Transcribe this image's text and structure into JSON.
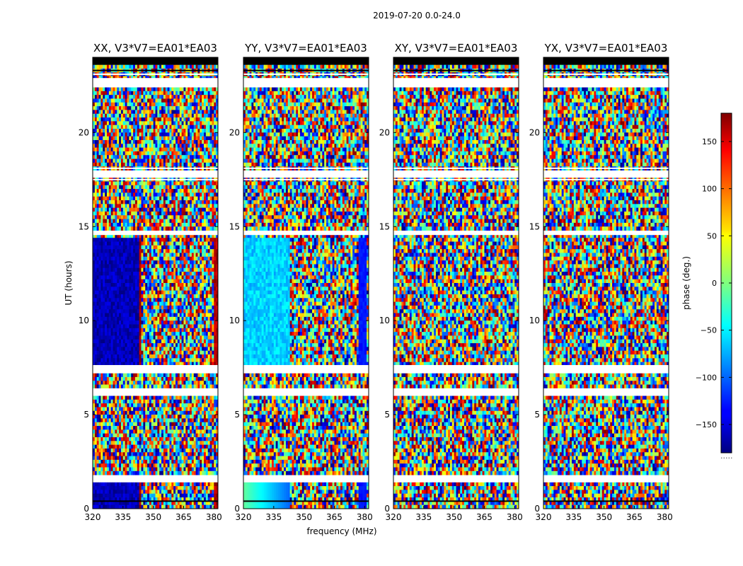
{
  "chart_data": {
    "type": "heatmap",
    "suptitle": "2019-07-20 0.0-24.0",
    "xlabel": "frequency (MHz)",
    "ylabel": "UT (hours)",
    "xlim": [
      320,
      382
    ],
    "ylim": [
      0,
      24
    ],
    "xticks": [
      320,
      335,
      350,
      365,
      380
    ],
    "yticks": [
      0,
      5,
      10,
      15,
      20
    ],
    "colorbar": {
      "label": "phase (deg.)",
      "range": [
        -180,
        180
      ],
      "ticks": [
        150,
        100,
        50,
        0,
        -50,
        -100,
        -150
      ],
      "tick_labels": [
        "150",
        "100",
        "50",
        "0",
        "−50",
        "−100",
        "−150"
      ],
      "colormap": "jet",
      "extra_label": "....."
    },
    "panels": [
      {
        "title": "XX, V3*V7=EA01*EA03",
        "pol": "XX",
        "band_phase": [
          {
            "f0": 320,
            "f1": 343,
            "phase": -160
          },
          {
            "f0": 343,
            "f1": 344.5,
            "phase": 170
          },
          {
            "f0": 344.5,
            "f1": 343.8,
            "phase": 0
          }
        ]
      },
      {
        "title": "YY, V3*V7=EA01*EA03",
        "pol": "YY",
        "band_phase": [
          {
            "f0": 320,
            "f1": 343,
            "phase": -60
          }
        ]
      },
      {
        "title": "XY, V3*V7=EA01*EA03",
        "pol": "XY",
        "band_phase": []
      },
      {
        "title": "YX, V3*V7=EA01*EA03",
        "pol": "YX",
        "band_phase": []
      }
    ],
    "flagged_ut_hours": [
      0.4,
      1.55,
      1.7,
      6.2,
      6.3,
      7.3,
      7.45,
      7.6,
      14.6,
      14.7,
      17.5,
      17.7,
      17.9,
      18.1,
      23.1,
      23.3
    ],
    "masked_ut_ranges": [
      [
        22.5,
        22.9
      ],
      [
        14.55,
        14.75
      ],
      [
        7.2,
        7.55
      ],
      [
        6.1,
        6.4
      ],
      [
        1.45,
        1.75
      ],
      [
        17.6,
        17.95
      ]
    ],
    "solid_ut_ranges": [
      [
        0.0,
        1.45
      ],
      [
        7.6,
        14.5
      ]
    ]
  }
}
